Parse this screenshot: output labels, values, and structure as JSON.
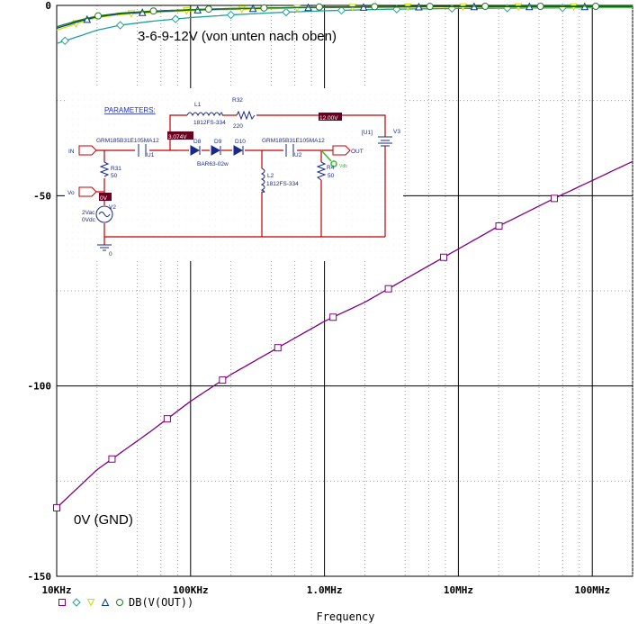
{
  "chart_data": {
    "type": "line",
    "x_scale": "log",
    "xlim_hz": [
      10000,
      200000000
    ],
    "ylim": [
      -150,
      0
    ],
    "grid": true,
    "x_ticks": [
      {
        "value": 10000,
        "label": "10KHz"
      },
      {
        "value": 100000,
        "label": "100KHz"
      },
      {
        "value": 1000000,
        "label": "1.0MHz"
      },
      {
        "value": 10000000,
        "label": "10MHz"
      },
      {
        "value": 100000000,
        "label": "100MHz"
      }
    ],
    "y_ticks": [
      {
        "value": 0,
        "label": "0"
      },
      {
        "value": -50,
        "label": "-50"
      },
      {
        "value": -100,
        "label": "-100"
      },
      {
        "value": -150,
        "label": "-150"
      }
    ],
    "xlabel": "Frequency",
    "ylabel": "",
    "legend_text": "DB(V(OUT))",
    "legend_placement": "bottom-left",
    "annotations": {
      "top": "3-6-9-12V (von unten nach oben)",
      "bottom": "0V (GND)"
    },
    "series": [
      {
        "marker": "square",
        "color": "#800080",
        "x": [
          10000,
          20000,
          50000,
          100000,
          200000,
          500000,
          1000000,
          2000000,
          5000000,
          10000000,
          20000000,
          50000000,
          100000000,
          200000000
        ],
        "y": [
          -132,
          -122,
          -112,
          -104,
          -97,
          -89,
          -83,
          -78,
          -70,
          -64,
          -58,
          -51,
          -46,
          -41
        ]
      },
      {
        "marker": "diamond",
        "color": "#1fa0a0",
        "x": [
          10000,
          15000,
          20000,
          30000,
          50000,
          100000,
          200000,
          500000,
          1000000,
          3000000,
          10000000,
          30000000,
          100000000,
          200000000
        ],
        "y": [
          -10,
          -8,
          -6.5,
          -5.2,
          -4.2,
          -3.2,
          -2.5,
          -1.8,
          -1.4,
          -1.0,
          -0.8,
          -0.7,
          -0.6,
          -0.6
        ]
      },
      {
        "marker": "triangle-down",
        "color": "#c8e000",
        "x": [
          10000,
          15000,
          20000,
          30000,
          50000,
          100000,
          200000,
          500000,
          1000000,
          3000000,
          10000000,
          30000000,
          100000000,
          200000000
        ],
        "y": [
          -6.5,
          -4.5,
          -3.2,
          -2.4,
          -1.9,
          -1.4,
          -1.1,
          -0.8,
          -0.6,
          -0.5,
          -0.4,
          -0.4,
          -0.4,
          -0.4
        ]
      },
      {
        "marker": "triangle-up",
        "color": "#003a80",
        "x": [
          10000,
          15000,
          20000,
          30000,
          50000,
          100000,
          200000,
          500000,
          1000000,
          3000000,
          10000000,
          30000000,
          100000000,
          200000000
        ],
        "y": [
          -6.0,
          -4.1,
          -3.0,
          -2.2,
          -1.7,
          -1.2,
          -0.9,
          -0.6,
          -0.5,
          -0.4,
          -0.3,
          -0.3,
          -0.3,
          -0.3
        ]
      },
      {
        "marker": "circle",
        "color": "#207a20",
        "x": [
          10000,
          15000,
          20000,
          30000,
          50000,
          100000,
          200000,
          500000,
          1000000,
          3000000,
          10000000,
          30000000,
          100000000,
          200000000
        ],
        "y": [
          -5.6,
          -3.8,
          -2.8,
          -2.0,
          -1.5,
          -1.1,
          -0.8,
          -0.6,
          -0.4,
          -0.3,
          -0.25,
          -0.2,
          -0.2,
          -0.2
        ]
      }
    ]
  },
  "schematic": {
    "parameters_label": "PARAMETERS:",
    "labels": {
      "L1": "L1",
      "L1_value": "1812FS-334",
      "R32": "R32",
      "R32_value": "220",
      "v12": "12.00V",
      "v3074": "3.074V",
      "v0": "0V",
      "C1_part": "GRM185B31E105MA12",
      "U1": "U1",
      "D8": "D8",
      "D9": "D9",
      "D10": "D10",
      "diode_part": "BAR63-02w",
      "C2_part": "GRM185B31E105MA12",
      "U2": "U2",
      "L2": "L2",
      "L2_value": "1812FS-334",
      "R4": "R4",
      "R4_value": "50",
      "R31": "R31",
      "R31_value": "50",
      "V2": "V2",
      "V2_ac": "2Vac",
      "V2_dc": "0Vdc",
      "V3": "V3",
      "U1_bracket": "[U1]",
      "IN": "IN",
      "Vo": "Vo",
      "OUT": "OUT",
      "gnd": "0",
      "probe": "Vdb"
    }
  }
}
